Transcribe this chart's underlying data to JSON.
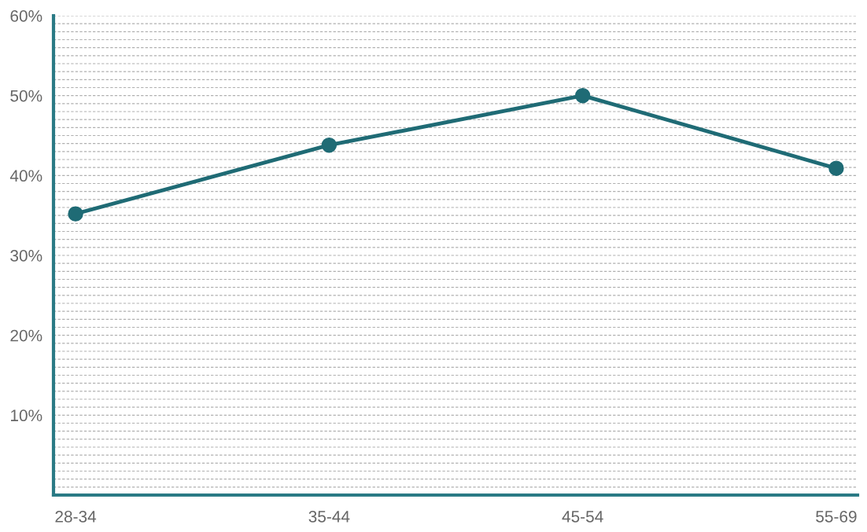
{
  "chart_data": {
    "type": "line",
    "categories": [
      "28-34",
      "35-44",
      "45-54",
      "55-69"
    ],
    "series": [
      {
        "color": "#1f6b75",
        "values": [
          35.2,
          43.8,
          50.0,
          40.9
        ]
      }
    ],
    "ylim": [
      0,
      60
    ],
    "yticks": [
      {
        "value": 0,
        "label": null
      },
      {
        "value": 1,
        "label": null
      },
      {
        "value": 2,
        "label": null
      },
      {
        "value": 3,
        "label": null
      },
      {
        "value": 4,
        "label": null
      },
      {
        "value": 5,
        "label": null
      },
      {
        "value": 6,
        "label": null
      },
      {
        "value": 7,
        "label": null
      },
      {
        "value": 8,
        "label": null
      },
      {
        "value": 9,
        "label": null
      },
      {
        "value": 10,
        "label": "10%"
      },
      {
        "value": 11,
        "label": null
      },
      {
        "value": 12,
        "label": null
      },
      {
        "value": 13,
        "label": null
      },
      {
        "value": 14,
        "label": null
      },
      {
        "value": 15,
        "label": null
      },
      {
        "value": 16,
        "label": null
      },
      {
        "value": 17,
        "label": null
      },
      {
        "value": 18,
        "label": null
      },
      {
        "value": 19,
        "label": null
      },
      {
        "value": 20,
        "label": "20%"
      },
      {
        "value": 21,
        "label": null
      },
      {
        "value": 22,
        "label": null
      },
      {
        "value": 23,
        "label": null
      },
      {
        "value": 24,
        "label": null
      },
      {
        "value": 25,
        "label": null
      },
      {
        "value": 26,
        "label": null
      },
      {
        "value": 27,
        "label": null
      },
      {
        "value": 28,
        "label": null
      },
      {
        "value": 29,
        "label": null
      },
      {
        "value": 30,
        "label": "30%"
      },
      {
        "value": 31,
        "label": null
      },
      {
        "value": 32,
        "label": null
      },
      {
        "value": 33,
        "label": null
      },
      {
        "value": 34,
        "label": null
      },
      {
        "value": 35,
        "label": null
      },
      {
        "value": 36,
        "label": null
      },
      {
        "value": 37,
        "label": null
      },
      {
        "value": 38,
        "label": null
      },
      {
        "value": 39,
        "label": null
      },
      {
        "value": 40,
        "label": "40%"
      },
      {
        "value": 41,
        "label": null
      },
      {
        "value": 42,
        "label": null
      },
      {
        "value": 43,
        "label": null
      },
      {
        "value": 44,
        "label": null
      },
      {
        "value": 45,
        "label": null
      },
      {
        "value": 46,
        "label": null
      },
      {
        "value": 47,
        "label": null
      },
      {
        "value": 48,
        "label": null
      },
      {
        "value": 49,
        "label": null
      },
      {
        "value": 50,
        "label": "50%"
      },
      {
        "value": 51,
        "label": null
      },
      {
        "value": 52,
        "label": null
      },
      {
        "value": 53,
        "label": null
      },
      {
        "value": 54,
        "label": null
      },
      {
        "value": 55,
        "label": null
      },
      {
        "value": 56,
        "label": null
      },
      {
        "value": 57,
        "label": null
      },
      {
        "value": 58,
        "label": null
      },
      {
        "value": 59,
        "label": null
      },
      {
        "value": 60,
        "label": "60%"
      }
    ],
    "grid": "y",
    "marker": "circle",
    "line_style": "solid"
  }
}
